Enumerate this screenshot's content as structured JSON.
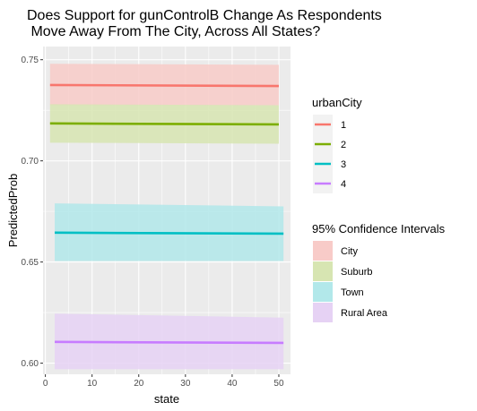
{
  "chart_data": {
    "type": "line",
    "title_lines": [
      "Does Support for gunControlB Change As Respondents",
      " Move Away From The City, Across All States?"
    ],
    "xlabel": "state",
    "ylabel": "PredictedProb",
    "xlim": [
      -0.5,
      52.5
    ],
    "ylim": [
      0.5945,
      0.7565
    ],
    "x_ticks": [
      0,
      10,
      20,
      30,
      40,
      50
    ],
    "x_tick_labels": [
      "0",
      "10",
      "20",
      "30",
      "40",
      "50"
    ],
    "y_ticks": [
      0.6,
      0.65,
      0.7,
      0.75
    ],
    "y_tick_labels": [
      "0.60",
      "0.65",
      "0.70",
      "0.75"
    ],
    "grid": true,
    "legend_position": "right",
    "legend_line_title": "urbanCity",
    "legend_ci_title": "95% Confidence Intervals",
    "series": [
      {
        "name": "1",
        "ci_name": "City",
        "color": "#F8766D",
        "fill": "#F8CBC8",
        "x": [
          1,
          50
        ],
        "y": [
          0.7375,
          0.737
        ],
        "ci_upper": [
          0.748,
          0.7475
        ],
        "ci_lower": [
          0.7275,
          0.7275
        ]
      },
      {
        "name": "2",
        "ci_name": "Suburb",
        "color": "#7CAE00",
        "fill": "#D7E5B2",
        "x": [
          1,
          50
        ],
        "y": [
          0.7185,
          0.718
        ],
        "ci_upper": [
          0.728,
          0.7275
        ],
        "ci_lower": [
          0.709,
          0.7085
        ]
      },
      {
        "name": "3",
        "ci_name": "Town",
        "color": "#00BFC4",
        "fill": "#B2E8EA",
        "x": [
          2,
          51
        ],
        "y": [
          0.6645,
          0.664
        ],
        "ci_upper": [
          0.679,
          0.6775
        ],
        "ci_lower": [
          0.6505,
          0.6505
        ]
      },
      {
        "name": "4",
        "ci_name": "Rural Area",
        "color": "#C77CFF",
        "fill": "#E6D2F4",
        "x": [
          2,
          51
        ],
        "y": [
          0.6105,
          0.61
        ],
        "ci_upper": [
          0.6245,
          0.6225
        ],
        "ci_lower": [
          0.597,
          0.597
        ]
      }
    ]
  }
}
